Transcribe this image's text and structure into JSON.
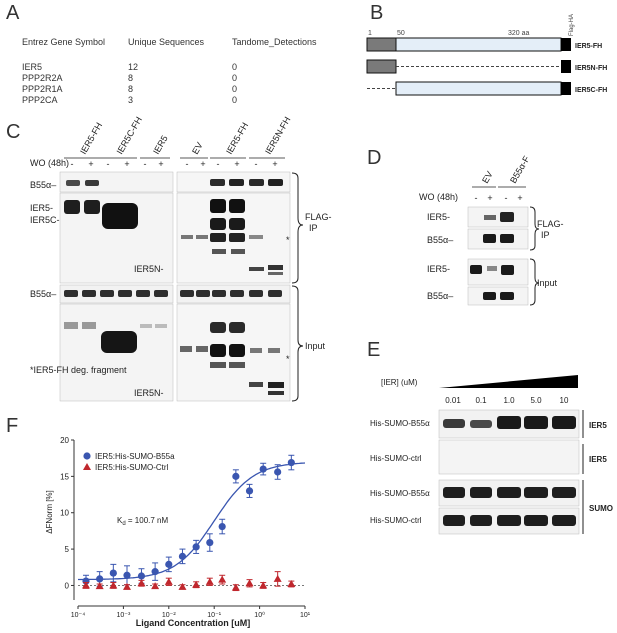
{
  "panels": {
    "A": "A",
    "B": "B",
    "C": "C",
    "D": "D",
    "E": "E",
    "F": "F"
  },
  "tableA": {
    "headers": [
      "Entrez Gene Symbol",
      "Unique Sequences",
      "Tandome_Detections"
    ],
    "rows": [
      [
        "IER5",
        "12",
        "0"
      ],
      [
        "PPP2R2A",
        "8",
        "0"
      ],
      [
        "PPP2R1A",
        "8",
        "0"
      ],
      [
        "PPP2CA",
        "3",
        "0"
      ]
    ]
  },
  "panelB": {
    "tick_1": "1",
    "tick_50": "50",
    "tick_320": "320 aa",
    "flag_tag": "Flag-HA",
    "constructs": [
      "IER5-FH",
      "IER5N-FH",
      "IER5C-FH"
    ]
  },
  "panelC": {
    "lane_groups": [
      "IER5-FH",
      "IER5C-FH",
      "IER5",
      "EV",
      "IER5-FH",
      "IER5N-FH"
    ],
    "wo_label": "WO (48h)",
    "wo_signs": [
      "-",
      "+",
      "-",
      "+",
      "-",
      "+",
      "-",
      "+",
      "-",
      "+",
      "-",
      "+"
    ],
    "row_labels": {
      "b55_top": "B55α–",
      "ier5": "IER5-",
      "ier5c": "IER5C-",
      "ier5n_top": "IER5N-",
      "b55_bottom": "B55α–",
      "ier5n_bottom": "IER5N-"
    },
    "bracket_flag": "FLAG-",
    "bracket_ip": "IP",
    "bracket_input": "Input",
    "asterisk": "*",
    "footnote": "*IER5-FH deg. fragment"
  },
  "panelD": {
    "lane_groups": [
      "EV",
      "B55α-F"
    ],
    "wo_label": "WO (48h)",
    "wo_signs": [
      "-",
      "+",
      "-",
      "+"
    ],
    "row_labels": [
      "IER5-",
      "B55α–",
      "IER5-",
      "B55α–"
    ],
    "bracket_flag": "FLAG-",
    "bracket_ip": "IP",
    "bracket_input": "Input"
  },
  "panelE": {
    "conc_label": "[IER] (uM)",
    "concentrations": [
      "0.01",
      "0.1",
      "1.0",
      "5.0",
      "10"
    ],
    "row_labels": [
      "His-SUMO-B55α",
      "His-SUMO-ctrl",
      "His-SUMO-B55α",
      "His-SUMO-ctrl"
    ],
    "side_labels": [
      "IER5",
      "IER5",
      "SUMO"
    ]
  },
  "chart_data": {
    "type": "scatter",
    "xlabel": "Ligand Concentration [uM]",
    "ylabel": "ΔFNorm [%]",
    "xscale": "log",
    "xlim": [
      0.0001,
      10
    ],
    "ylim": [
      -2,
      20
    ],
    "yticks": [
      0,
      5,
      10,
      15,
      20
    ],
    "xtick_labels": [
      "10⁻⁴",
      "10⁻³",
      "10⁻²",
      "10⁻¹",
      "10⁰",
      "10¹"
    ],
    "annotation": "K",
    "annotation_sub": "d",
    "annotation_rest": " = 100.7 nM",
    "legend_position": "top-left",
    "series": [
      {
        "name": "IER5:His-SUMO-B55a",
        "color": "#3a56b0",
        "marker": "circle",
        "x": [
          0.00015,
          0.0003,
          0.0006,
          0.0012,
          0.0025,
          0.005,
          0.01,
          0.02,
          0.04,
          0.08,
          0.15,
          0.3,
          0.6,
          1.2,
          2.5,
          5
        ],
        "y": [
          0.6,
          0.9,
          1.7,
          1.4,
          1.3,
          1.9,
          2.9,
          4.0,
          5.3,
          5.9,
          8.1,
          15.0,
          13.0,
          16.0,
          15.6,
          16.9
        ],
        "err": [
          0.8,
          1.0,
          1.2,
          1.3,
          1.0,
          1.2,
          1.0,
          1.0,
          0.9,
          1.2,
          1.0,
          0.9,
          0.9,
          0.8,
          1.0,
          1.0
        ]
      },
      {
        "name": "IER5:His-SUMO-Ctrl",
        "color": "#c0272d",
        "marker": "triangle",
        "x": [
          0.00015,
          0.0003,
          0.0006,
          0.0012,
          0.0025,
          0.005,
          0.01,
          0.02,
          0.04,
          0.08,
          0.15,
          0.3,
          0.6,
          1.2,
          2.5,
          5
        ],
        "y": [
          0.0,
          -0.1,
          0.0,
          -0.2,
          0.3,
          -0.1,
          0.5,
          -0.2,
          0.1,
          0.5,
          0.8,
          -0.3,
          0.3,
          0.0,
          0.9,
          0.2
        ],
        "err": [
          0.4,
          0.3,
          0.4,
          0.3,
          0.4,
          0.3,
          0.5,
          0.3,
          0.4,
          0.5,
          0.6,
          0.4,
          0.5,
          0.4,
          1.0,
          0.4
        ]
      }
    ],
    "fit": {
      "series": "IER5:His-SUMO-B55a",
      "type": "sigmoidal",
      "kd_uM": 0.1007,
      "bottom": 0.8,
      "top": 17.0
    }
  }
}
